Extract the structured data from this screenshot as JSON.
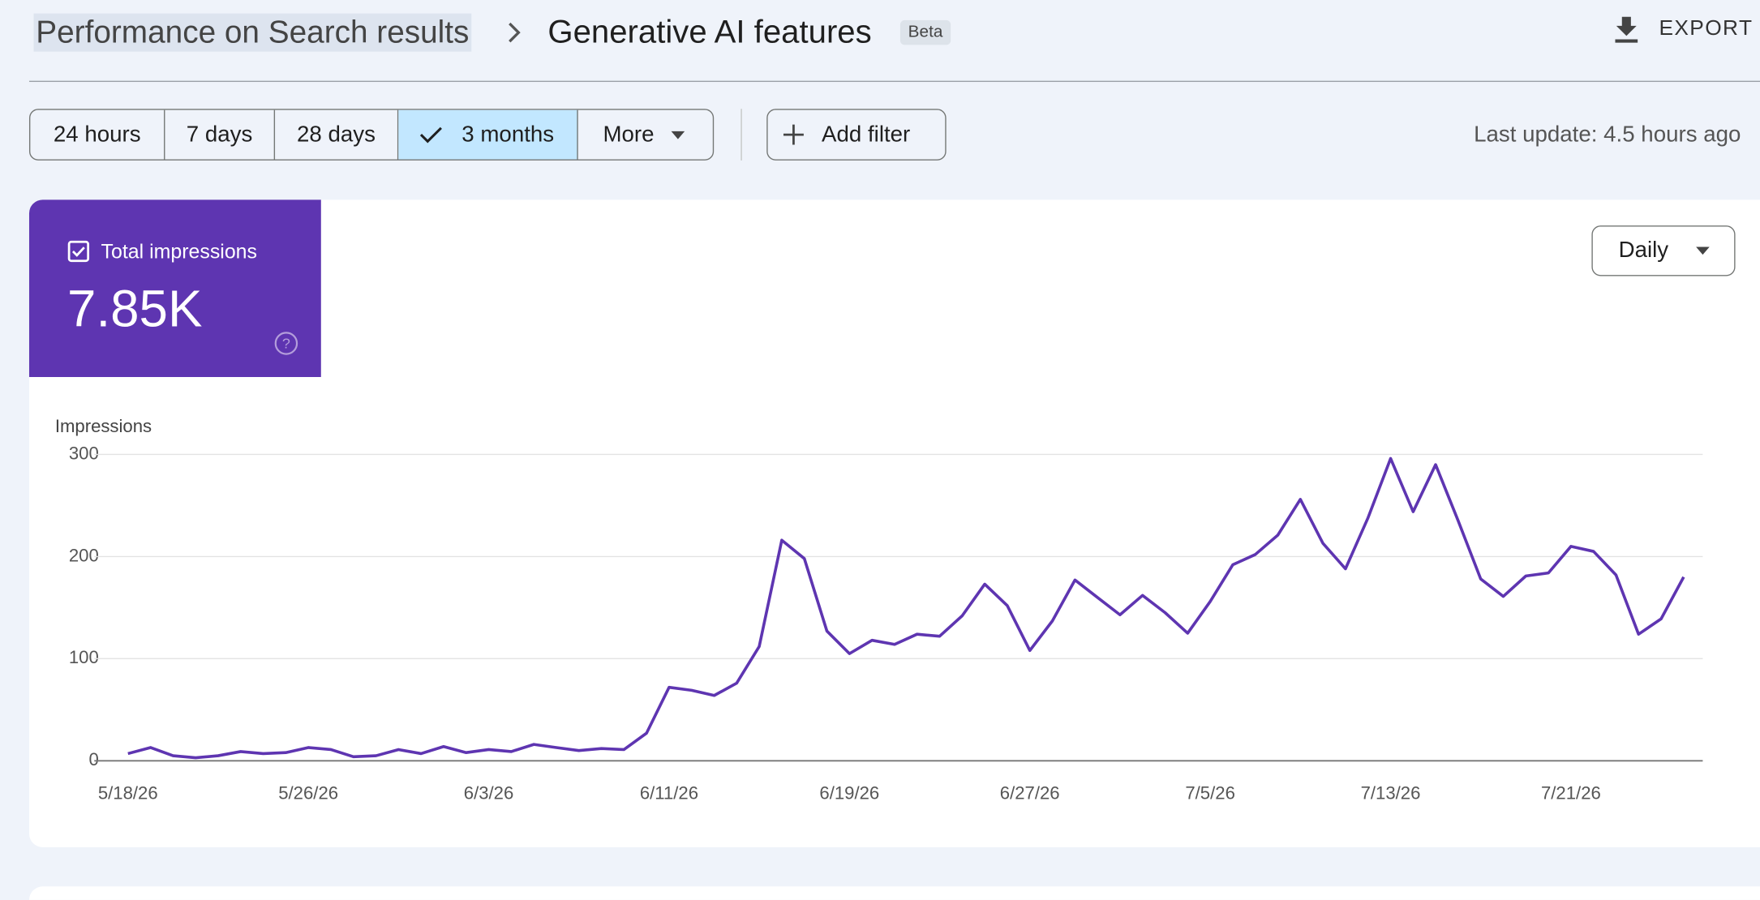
{
  "header": {
    "breadcrumb": "Performance on Search results",
    "title": "Generative AI features",
    "badge": "Beta",
    "export": "EXPORT"
  },
  "filters": {
    "ranges": [
      "24 hours",
      "7 days",
      "28 days",
      "3 months",
      "More"
    ],
    "add_filter": "Add filter",
    "last_update": "Last update: 4.5 hours ago"
  },
  "summary": {
    "label": "Total impressions",
    "value": "7.85K"
  },
  "granularity": "Daily",
  "chart_data": {
    "type": "line",
    "y_label": "Impressions",
    "color": "#5e35b1",
    "categories": [
      "5/18/26",
      null,
      null,
      null,
      null,
      null,
      null,
      null,
      "5/26/26",
      null,
      null,
      null,
      null,
      null,
      null,
      null,
      "6/3/26",
      null,
      null,
      null,
      null,
      null,
      null,
      null,
      "6/11/26",
      null,
      null,
      null,
      null,
      null,
      null,
      null,
      "6/19/26",
      null,
      null,
      null,
      null,
      null,
      null,
      null,
      "6/27/26",
      null,
      null,
      null,
      null,
      null,
      null,
      null,
      "7/5/26",
      null,
      null,
      null,
      null,
      null,
      null,
      null,
      "7/13/26",
      null,
      null,
      null,
      null,
      null,
      null,
      null,
      "7/21/26",
      null,
      null,
      null,
      null,
      null
    ],
    "values": [
      7,
      13,
      5,
      3,
      5,
      9,
      7,
      8,
      13,
      11,
      4,
      5,
      11,
      7,
      14,
      8,
      11,
      9,
      16,
      13,
      10,
      12,
      11,
      27,
      72,
      69,
      64,
      76,
      112,
      216,
      198,
      127,
      105,
      118,
      114,
      124,
      122,
      142,
      173,
      152,
      108,
      137,
      177,
      160,
      143,
      162,
      145,
      125,
      156,
      192,
      202,
      221,
      256,
      213,
      188,
      238,
      296,
      244,
      290,
      235,
      178,
      161,
      181,
      184,
      210,
      205,
      182,
      124,
      139,
      180
    ],
    "ylim": [
      0,
      300
    ],
    "yticks": [
      0,
      100,
      200,
      300
    ],
    "grid": true
  }
}
